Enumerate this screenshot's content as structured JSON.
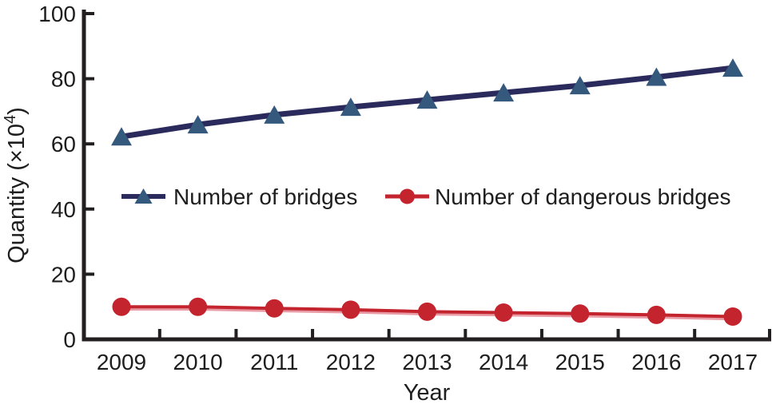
{
  "chart_data": {
    "type": "line",
    "title": "",
    "xlabel": "Year",
    "ylabel": "Quantity (×10⁴)",
    "ylabel_parts": {
      "pre": "Quantity (×10",
      "sup": "4",
      "post": ")"
    },
    "x": [
      2009,
      2010,
      2011,
      2012,
      2013,
      2014,
      2015,
      2016,
      2017
    ],
    "series": [
      {
        "name": "Number of bridges",
        "marker": "triangle",
        "line_color": "#2a2a5c",
        "marker_color": "#35597d",
        "values": [
          62.2,
          65.9,
          68.9,
          71.3,
          73.5,
          75.7,
          77.9,
          80.5,
          83.3
        ]
      },
      {
        "name": "Number of dangerous bridges",
        "marker": "circle",
        "line_color": "#c3242e",
        "line_halo_color": "#e89ba4",
        "marker_color": "#c3242e",
        "values": [
          10.0,
          10.0,
          9.5,
          9.1,
          8.5,
          8.2,
          7.9,
          7.5,
          7.0
        ]
      }
    ],
    "ylim": [
      0,
      100
    ],
    "yticks": [
      0,
      20,
      40,
      60,
      80,
      100
    ],
    "grid": false,
    "legend_position": "inside-center-left",
    "axis_color": "#231f20",
    "text_color": "#1e1e1e"
  }
}
